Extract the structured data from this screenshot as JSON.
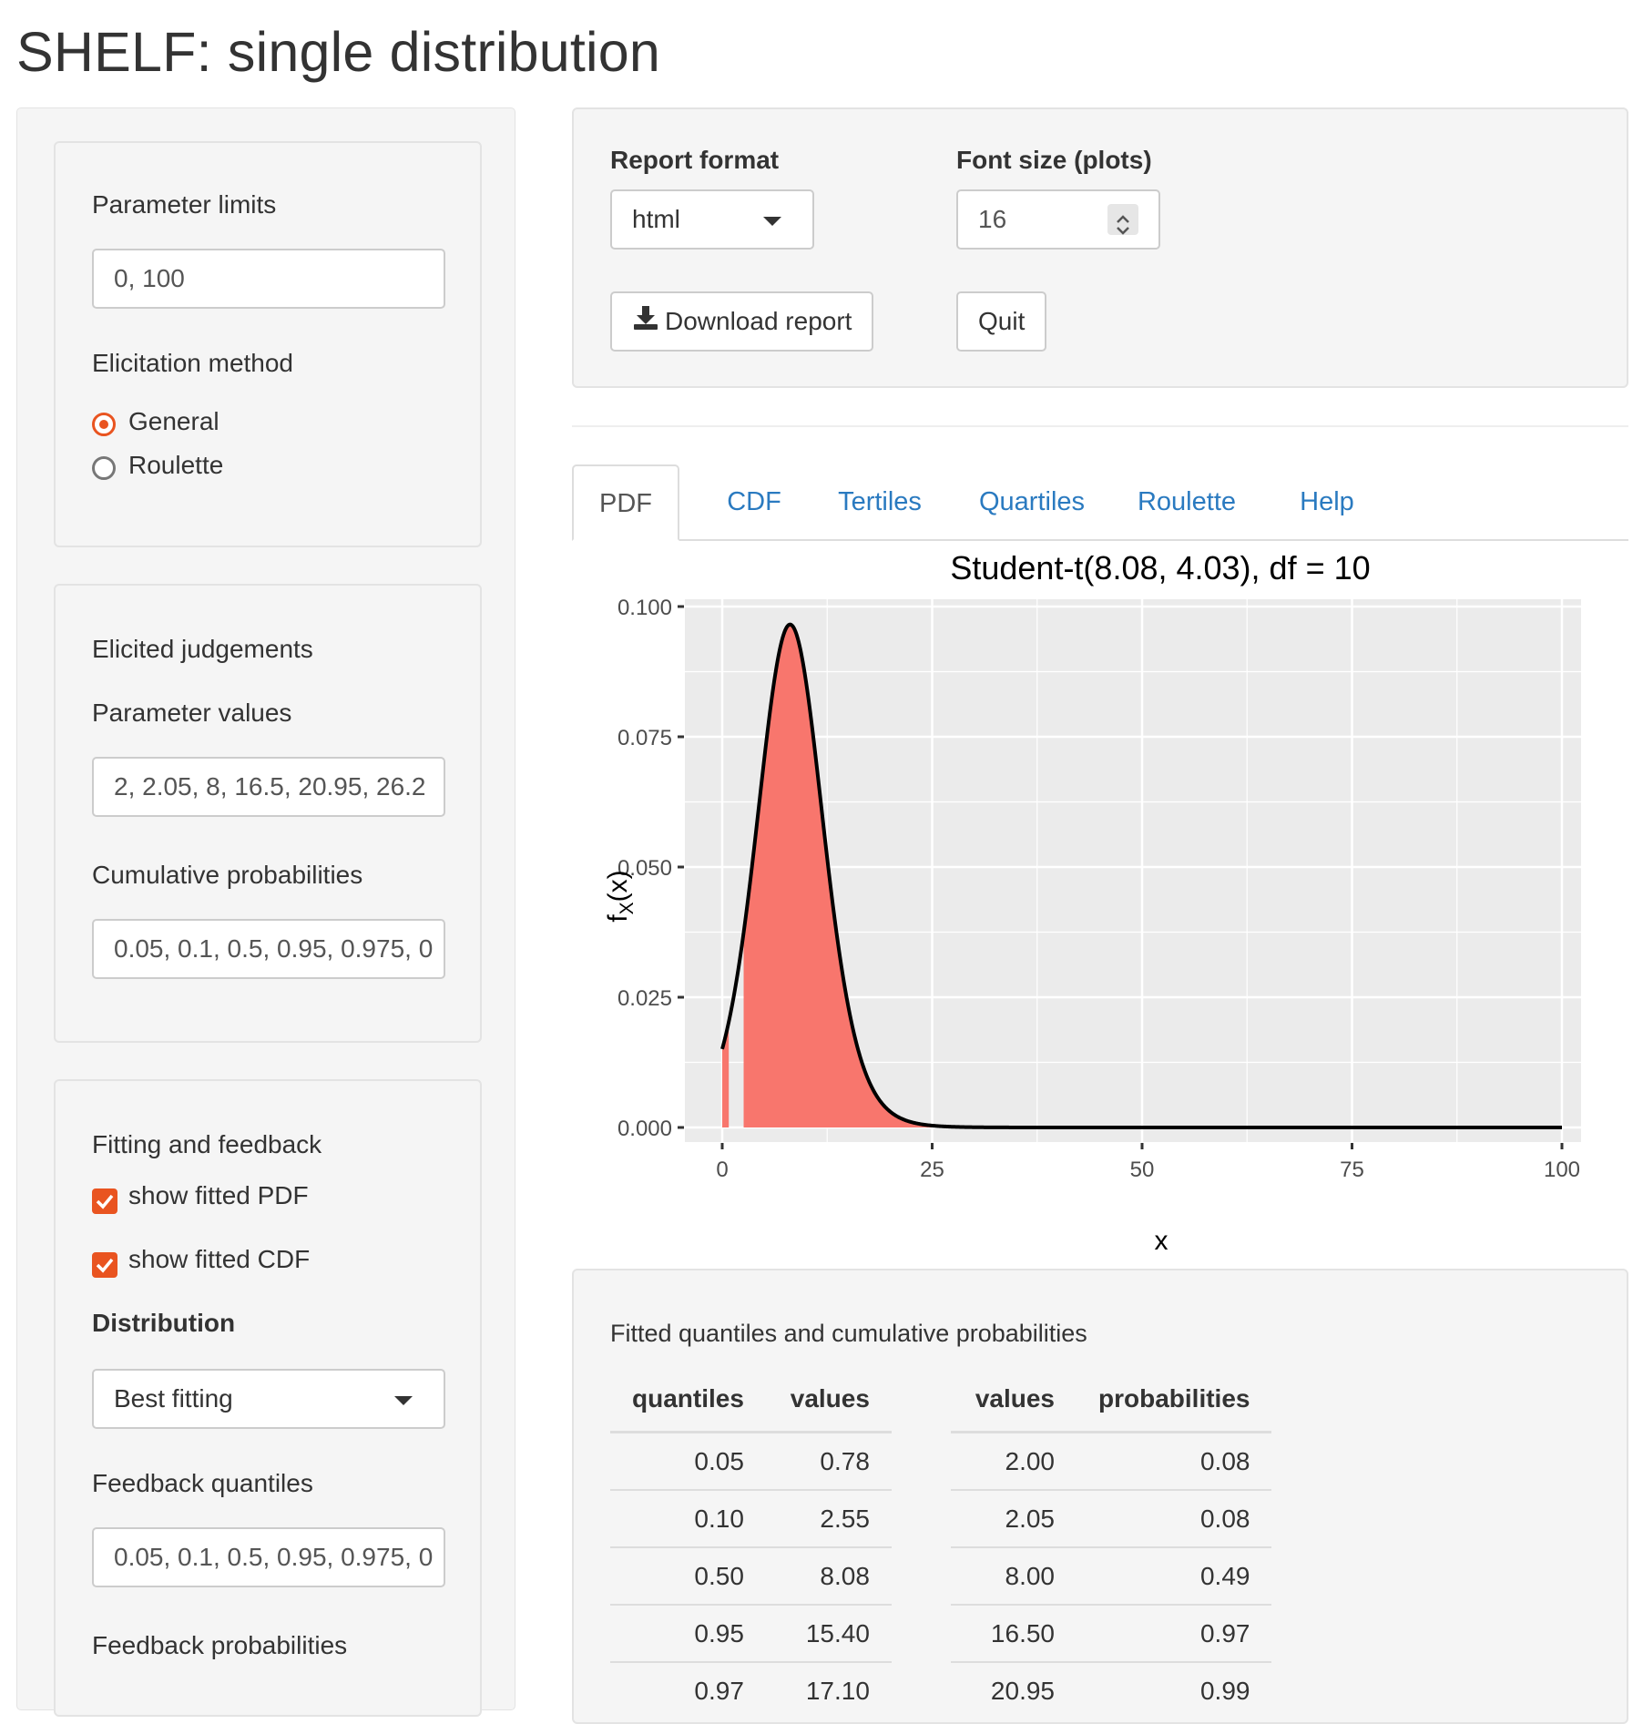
{
  "app_title": "SHELF: single distribution",
  "sidebar": {
    "param_limits": {
      "label": "Parameter limits",
      "value": "0, 100"
    },
    "elicitation": {
      "label": "Elicitation method",
      "options": [
        "General",
        "Roulette"
      ],
      "selected": "General"
    },
    "judgements": {
      "heading": "Elicited judgements",
      "values_label": "Parameter values",
      "values_value": "2, 2.05, 8, 16.5, 20.95, 26.2",
      "probs_label": "Cumulative probabilities",
      "probs_value": "0.05, 0.1, 0.5, 0.95, 0.975, 0"
    },
    "fitting": {
      "heading": "Fitting and feedback",
      "show_pdf": "show fitted PDF",
      "show_cdf": "show fitted CDF",
      "distribution_label": "Distribution",
      "distribution_value": "Best fitting",
      "fq_label": "Feedback quantiles",
      "fq_value": "0.05, 0.1, 0.5, 0.95, 0.975, 0",
      "fp_label": "Feedback probabilities"
    }
  },
  "top": {
    "report_label": "Report format",
    "report_value": "html",
    "font_label": "Font size (plots)",
    "font_value": "16",
    "download_label": "Download report",
    "quit_label": "Quit"
  },
  "tabs": [
    "PDF",
    "CDF",
    "Tertiles",
    "Quartiles",
    "Roulette",
    "Help"
  ],
  "active_tab": "PDF",
  "chart_data": {
    "type": "area",
    "title": "Student-t(8.08, 4.03), df = 10",
    "xlabel": "x",
    "ylabel": "fX(x)",
    "xlim": [
      0,
      100
    ],
    "ylim": [
      0,
      0.1
    ],
    "x_ticks": [
      "0",
      "25",
      "50",
      "75",
      "100"
    ],
    "y_ticks": [
      "0.000",
      "0.025",
      "0.050",
      "0.075",
      "0.100"
    ],
    "distribution": {
      "family": "Student-t",
      "location": 8.08,
      "scale": 4.03,
      "df": 10,
      "support": [
        0,
        100
      ]
    },
    "shaded_regions": [
      [
        0,
        0.78
      ],
      [
        2.55,
        100
      ]
    ],
    "fill_color": "#f8766d",
    "line_color": "#000000",
    "panel_color": "#ebebeb",
    "grid": true
  },
  "results": {
    "heading": "Fitted quantiles and cumulative probabilities",
    "quantiles_table": {
      "headers": [
        "quantiles",
        "values"
      ],
      "rows": [
        [
          "0.05",
          "0.78"
        ],
        [
          "0.10",
          "2.55"
        ],
        [
          "0.50",
          "8.08"
        ],
        [
          "0.95",
          "15.40"
        ],
        [
          "0.97",
          "17.10"
        ]
      ]
    },
    "probabilities_table": {
      "headers": [
        "values",
        "probabilities"
      ],
      "rows": [
        [
          "2.00",
          "0.08"
        ],
        [
          "2.05",
          "0.08"
        ],
        [
          "8.00",
          "0.49"
        ],
        [
          "16.50",
          "0.97"
        ],
        [
          "20.95",
          "0.99"
        ]
      ]
    }
  },
  "accent_color": "#e95420",
  "link_color": "#2a7ac0"
}
